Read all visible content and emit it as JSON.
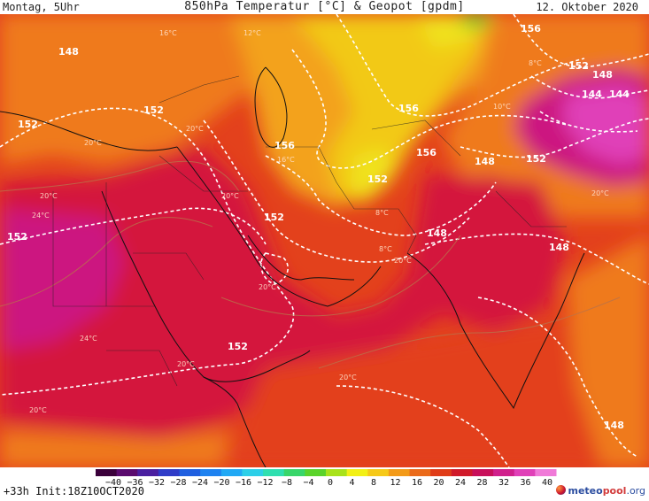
{
  "header": {
    "left": "Montag, 5Uhr",
    "title": "850hPa Temperatur [°C] & Geopot [gpdm]",
    "date": "12. Oktober 2020"
  },
  "footer": {
    "init": "+33h Init:18Z10OCT2020",
    "logo_a": "meteo",
    "logo_b": "pool",
    "logo_c": ".org"
  },
  "colorbar": {
    "ticks": [
      "−40",
      "−36",
      "−32",
      "−28",
      "−24",
      "−20",
      "−16",
      "−12",
      "−8",
      "−4",
      "0",
      "4",
      "8",
      "12",
      "16",
      "20",
      "24",
      "28",
      "32",
      "36",
      "40"
    ],
    "colors": [
      "#3a003a",
      "#5a0a6e",
      "#4a1fa0",
      "#2f3cc8",
      "#1f5fe0",
      "#1e82f0",
      "#21a9f5",
      "#2ccfe8",
      "#2fdfb0",
      "#38d66a",
      "#5ad32a",
      "#a8e21a",
      "#f2f016",
      "#f6c918",
      "#f39a18",
      "#ea6a1a",
      "#e03c18",
      "#d01a2a",
      "#c80f5a",
      "#d0208c",
      "#e040b8",
      "#f07ad8"
    ]
  },
  "map": {
    "contour_labels": [
      "148",
      "156",
      "152",
      "152",
      "156",
      "152",
      "156",
      "156",
      "152",
      "152",
      "148",
      "148",
      "152",
      "152",
      "148",
      "144",
      "144",
      "148",
      "152",
      "148"
    ],
    "temp_labels": [
      "16°C",
      "12°C",
      "20°C",
      "20°C",
      "16°C",
      "20°C",
      "24°C",
      "20°C",
      "24°C",
      "20°C",
      "20°C",
      "20°C",
      "20°C",
      "8°C",
      "10°C",
      "8°C",
      "20°C",
      "20°C",
      "8°C"
    ],
    "colors": {
      "hot": "#d4163e",
      "very_hot": "#cc1480",
      "warm": "#e3411c",
      "mild": "#ef7a1e",
      "cool": "#f3a21c",
      "cold": "#f2c919",
      "colder": "#f0e21a",
      "green": "#5ad32a",
      "magenta": "#e040b8",
      "contour": "#ffffff",
      "border": "#111111"
    }
  }
}
